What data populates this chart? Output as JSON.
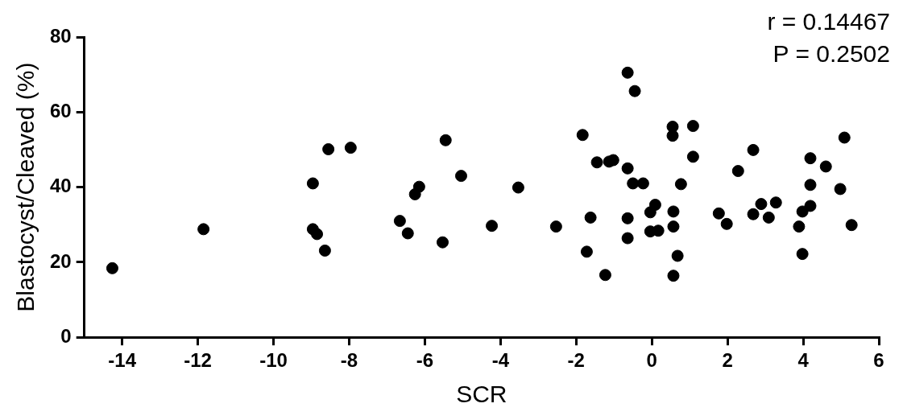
{
  "chart_data": {
    "type": "scatter",
    "xlabel": "SCR",
    "ylabel": "Blastocyst/Cleaved (%)",
    "annotations": [
      "r = 0.14467",
      "P = 0.2502"
    ],
    "xlim": [
      -15,
      6
    ],
    "xticks": [
      -14,
      -12,
      -10,
      -8,
      -6,
      -4,
      -2,
      0,
      2,
      4,
      6
    ],
    "ylim": [
      0,
      80
    ],
    "yticks": [
      0,
      20,
      40,
      60,
      80
    ],
    "grid": false,
    "legend": false,
    "marker": "circle",
    "series": [
      {
        "color": "#000000",
        "x": [
          -14.26,
          -11.85,
          -8.96,
          -8.96,
          -8.85,
          -8.64,
          -8.55,
          -7.96,
          -6.66,
          -6.45,
          -6.26,
          -6.15,
          -5.53,
          -5.45,
          -5.04,
          -4.23,
          -3.53,
          -2.53,
          -1.83,
          -1.62,
          -1.72,
          -1.23,
          -1.45,
          -1.13,
          -1.02,
          -0.64,
          -0.45,
          -0.64,
          -0.5,
          -0.23,
          -0.04,
          0.09,
          -0.64,
          -0.64,
          -0.04,
          0.17,
          0.55,
          0.55,
          1.09,
          1.09,
          0.77,
          0.57,
          0.57,
          0.68,
          0.57,
          1.77,
          1.98,
          2.28,
          2.68,
          2.68,
          2.89,
          3.09,
          3.28,
          3.98,
          4.19,
          3.89,
          3.98,
          4.19,
          4.19,
          4.6,
          4.98,
          5.09,
          5.28
        ],
        "values": [
          18.4,
          28.8,
          41,
          28.8,
          27.5,
          23.1,
          50.1,
          50.5,
          31,
          27.7,
          38.1,
          40.1,
          25.3,
          52.5,
          43,
          29.7,
          39.9,
          29.5,
          53.9,
          31.9,
          22.8,
          16.6,
          46.6,
          46.8,
          47.2,
          70.5,
          65.6,
          45,
          41,
          41,
          33.3,
          35.3,
          31.7,
          26.4,
          28.2,
          28.4,
          56.1,
          53.7,
          56.3,
          48.1,
          40.8,
          33.5,
          29.5,
          21.7,
          16.4,
          33,
          30.2,
          44.3,
          49.9,
          32.8,
          35.5,
          31.9,
          35.9,
          33.5,
          35,
          29.5,
          22.2,
          47.7,
          40.6,
          45.5,
          39.5,
          53.2,
          29.9
        ]
      }
    ]
  }
}
